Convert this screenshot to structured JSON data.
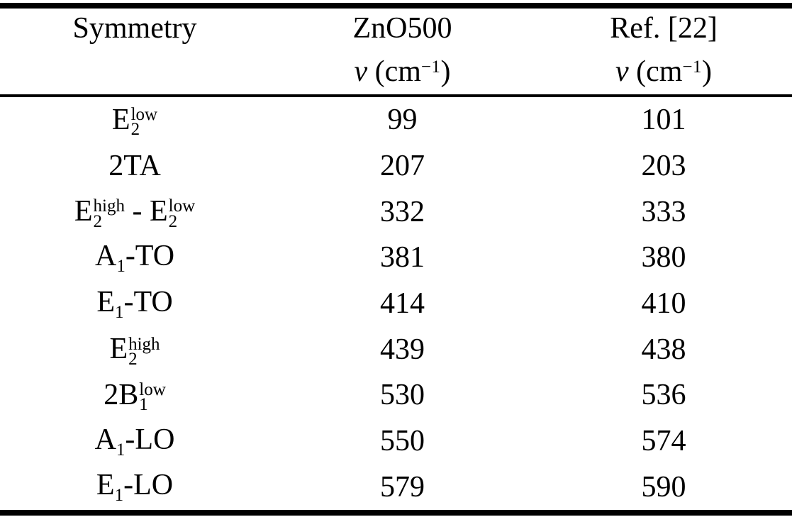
{
  "colors": {
    "background": "#ffffff",
    "text": "#000000",
    "rule": "#000000"
  },
  "table": {
    "header": {
      "symmetry_label": "Symmetry",
      "col2_title": "ZnO500",
      "col3_title": "Ref. [22]",
      "unit": {
        "nu": "ν",
        "pre": " (cm",
        "sup": "−1",
        "post": ")"
      }
    },
    "rows": [
      {
        "symmetry": [
          {
            "type": "text",
            "value": "E"
          },
          {
            "type": "stack",
            "sup": "low",
            "sub": "2"
          }
        ],
        "zno500": "99",
        "ref": "101"
      },
      {
        "symmetry": [
          {
            "type": "text",
            "value": "2TA"
          }
        ],
        "zno500": "207",
        "ref": "203"
      },
      {
        "symmetry": [
          {
            "type": "text",
            "value": "E"
          },
          {
            "type": "stack",
            "sup": "high",
            "sub": "2"
          },
          {
            "type": "text",
            "value": " - "
          },
          {
            "type": "text",
            "value": "E"
          },
          {
            "type": "stack",
            "sup": "low",
            "sub": "2"
          }
        ],
        "zno500": "332",
        "ref": "333"
      },
      {
        "symmetry": [
          {
            "type": "text",
            "value": "A"
          },
          {
            "type": "sub",
            "value": "1"
          },
          {
            "type": "text",
            "value": "-TO"
          }
        ],
        "zno500": "381",
        "ref": "380"
      },
      {
        "symmetry": [
          {
            "type": "text",
            "value": "E"
          },
          {
            "type": "sub",
            "value": "1"
          },
          {
            "type": "text",
            "value": "-TO"
          }
        ],
        "zno500": "414",
        "ref": "410"
      },
      {
        "symmetry": [
          {
            "type": "text",
            "value": "E"
          },
          {
            "type": "stack",
            "sup": "high",
            "sub": "2"
          }
        ],
        "zno500": "439",
        "ref": "438"
      },
      {
        "symmetry": [
          {
            "type": "text",
            "value": "2B"
          },
          {
            "type": "stack",
            "sup": "low",
            "sub": "1"
          }
        ],
        "zno500": "530",
        "ref": "536"
      },
      {
        "symmetry": [
          {
            "type": "text",
            "value": "A"
          },
          {
            "type": "sub",
            "value": "1"
          },
          {
            "type": "text",
            "value": "-LO"
          }
        ],
        "zno500": "550",
        "ref": "574"
      },
      {
        "symmetry": [
          {
            "type": "text",
            "value": "E"
          },
          {
            "type": "sub",
            "value": "1"
          },
          {
            "type": "text",
            "value": "-LO"
          }
        ],
        "zno500": "579",
        "ref": "590"
      }
    ]
  },
  "chart_data": {
    "type": "table",
    "columns": [
      "Symmetry",
      "ZnO500 ν (cm−1)",
      "Ref. [22] ν (cm−1)"
    ],
    "rows": [
      [
        "E2(low)",
        99,
        101
      ],
      [
        "2TA",
        207,
        203
      ],
      [
        "E2(high) - E2(low)",
        332,
        333
      ],
      [
        "A1-TO",
        381,
        380
      ],
      [
        "E1-TO",
        414,
        410
      ],
      [
        "E2(high)",
        439,
        438
      ],
      [
        "2B1(low)",
        530,
        536
      ],
      [
        "A1-LO",
        550,
        574
      ],
      [
        "E1-LO",
        579,
        590
      ]
    ]
  }
}
